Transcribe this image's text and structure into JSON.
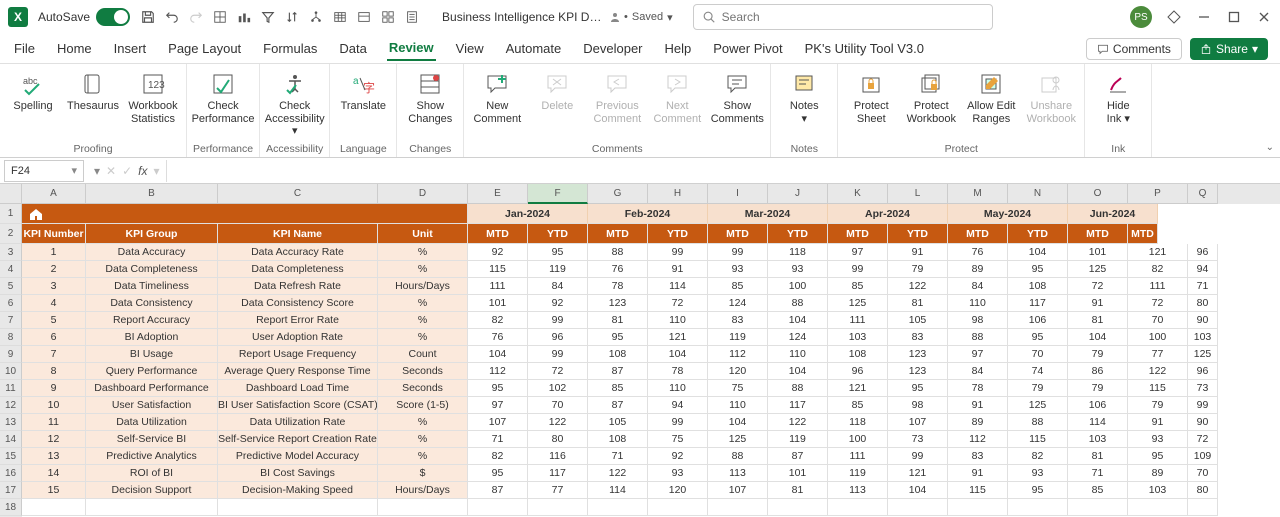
{
  "titlebar": {
    "autosave_label": "AutoSave",
    "autosave_state": "On",
    "doc_title": "Business Intelligence KPI Dashb...",
    "saved_label": "Saved",
    "search_placeholder": "Search",
    "avatar_initials": "PS"
  },
  "tabs": {
    "items": [
      "File",
      "Home",
      "Insert",
      "Page Layout",
      "Formulas",
      "Data",
      "Review",
      "View",
      "Automate",
      "Developer",
      "Help",
      "Power Pivot",
      "PK's Utility Tool V3.0"
    ],
    "active_index": 6,
    "comments_label": "Comments",
    "share_label": "Share"
  },
  "ribbon": {
    "groups": [
      {
        "label": "Proofing",
        "items": [
          {
            "label": "Spelling"
          },
          {
            "label": "Thesaurus"
          },
          {
            "label": "Workbook Statistics"
          }
        ]
      },
      {
        "label": "Performance",
        "items": [
          {
            "label": "Check Performance"
          }
        ]
      },
      {
        "label": "Accessibility",
        "items": [
          {
            "label": "Check Accessibility ▾"
          }
        ]
      },
      {
        "label": "Language",
        "items": [
          {
            "label": "Translate"
          }
        ]
      },
      {
        "label": "Changes",
        "items": [
          {
            "label": "Show Changes"
          }
        ]
      },
      {
        "label": "Comments",
        "items": [
          {
            "label": "New Comment"
          },
          {
            "label": "Delete",
            "disabled": true
          },
          {
            "label": "Previous Comment",
            "disabled": true
          },
          {
            "label": "Next Comment",
            "disabled": true
          },
          {
            "label": "Show Comments"
          }
        ]
      },
      {
        "label": "Notes",
        "items": [
          {
            "label": "Notes ▾"
          }
        ]
      },
      {
        "label": "Protect",
        "items": [
          {
            "label": "Protect Sheet"
          },
          {
            "label": "Protect Workbook"
          },
          {
            "label": "Allow Edit Ranges"
          },
          {
            "label": "Unshare Workbook",
            "disabled": true
          }
        ]
      },
      {
        "label": "Ink",
        "items": [
          {
            "label": "Hide Ink ▾"
          }
        ]
      }
    ]
  },
  "formula_bar": {
    "cell_ref": "F24",
    "formula": ""
  },
  "sheet": {
    "col_letters": [
      "A",
      "B",
      "C",
      "D",
      "E",
      "F",
      "G",
      "H",
      "I",
      "J",
      "K",
      "L",
      "M",
      "N",
      "O",
      "P",
      "Q"
    ],
    "selected_col": "F",
    "months": [
      "Jan-2024",
      "Feb-2024",
      "Mar-2024",
      "Apr-2024",
      "May-2024",
      "Jun-2024"
    ],
    "mtd_ytd": [
      "MTD",
      "YTD"
    ],
    "kpi_headers": [
      "KPI Number",
      "KPI Group",
      "KPI Name",
      "Unit"
    ],
    "rows": [
      {
        "n": "1",
        "g": "Data Accuracy",
        "name": "Data Accuracy Rate",
        "u": "%",
        "v": [
          "92",
          "95",
          "88",
          "99",
          "99",
          "118",
          "97",
          "91",
          "76",
          "104",
          "101",
          "121",
          "96"
        ]
      },
      {
        "n": "2",
        "g": "Data Completeness",
        "name": "Data Completeness",
        "u": "%",
        "v": [
          "115",
          "119",
          "76",
          "91",
          "93",
          "93",
          "99",
          "79",
          "89",
          "95",
          "125",
          "82",
          "94"
        ]
      },
      {
        "n": "3",
        "g": "Data Timeliness",
        "name": "Data Refresh Rate",
        "u": "Hours/Days",
        "v": [
          "111",
          "84",
          "78",
          "114",
          "85",
          "100",
          "85",
          "122",
          "84",
          "108",
          "72",
          "111",
          "71"
        ]
      },
      {
        "n": "4",
        "g": "Data Consistency",
        "name": "Data Consistency Score",
        "u": "%",
        "v": [
          "101",
          "92",
          "123",
          "72",
          "124",
          "88",
          "125",
          "81",
          "110",
          "117",
          "91",
          "72",
          "80"
        ]
      },
      {
        "n": "5",
        "g": "Report Accuracy",
        "name": "Report Error Rate",
        "u": "%",
        "v": [
          "82",
          "99",
          "81",
          "110",
          "83",
          "104",
          "111",
          "105",
          "98",
          "106",
          "81",
          "70",
          "90"
        ]
      },
      {
        "n": "6",
        "g": "BI Adoption",
        "name": "User Adoption Rate",
        "u": "%",
        "v": [
          "76",
          "96",
          "95",
          "121",
          "119",
          "124",
          "103",
          "83",
          "88",
          "95",
          "104",
          "100",
          "103"
        ]
      },
      {
        "n": "7",
        "g": "BI Usage",
        "name": "Report Usage Frequency",
        "u": "Count",
        "v": [
          "104",
          "99",
          "108",
          "104",
          "112",
          "110",
          "108",
          "123",
          "97",
          "70",
          "79",
          "77",
          "125"
        ]
      },
      {
        "n": "8",
        "g": "Query Performance",
        "name": "Average Query Response Time",
        "u": "Seconds",
        "v": [
          "112",
          "72",
          "87",
          "78",
          "120",
          "104",
          "96",
          "123",
          "84",
          "74",
          "86",
          "122",
          "96"
        ]
      },
      {
        "n": "9",
        "g": "Dashboard Performance",
        "name": "Dashboard Load Time",
        "u": "Seconds",
        "v": [
          "95",
          "102",
          "85",
          "110",
          "75",
          "88",
          "121",
          "95",
          "78",
          "79",
          "79",
          "115",
          "73"
        ]
      },
      {
        "n": "10",
        "g": "User Satisfaction",
        "name": "BI User Satisfaction Score (CSAT)",
        "u": "Score (1-5)",
        "v": [
          "97",
          "70",
          "87",
          "94",
          "110",
          "117",
          "85",
          "98",
          "91",
          "125",
          "106",
          "79",
          "99"
        ]
      },
      {
        "n": "11",
        "g": "Data Utilization",
        "name": "Data Utilization Rate",
        "u": "%",
        "v": [
          "107",
          "122",
          "105",
          "99",
          "104",
          "122",
          "118",
          "107",
          "89",
          "88",
          "114",
          "91",
          "90"
        ]
      },
      {
        "n": "12",
        "g": "Self-Service BI",
        "name": "Self-Service Report Creation Rate",
        "u": "%",
        "v": [
          "71",
          "80",
          "108",
          "75",
          "125",
          "119",
          "100",
          "73",
          "112",
          "115",
          "103",
          "93",
          "72"
        ]
      },
      {
        "n": "13",
        "g": "Predictive Analytics",
        "name": "Predictive Model Accuracy",
        "u": "%",
        "v": [
          "82",
          "116",
          "71",
          "92",
          "88",
          "87",
          "111",
          "99",
          "83",
          "82",
          "81",
          "95",
          "109"
        ]
      },
      {
        "n": "14",
        "g": "ROI of BI",
        "name": "BI Cost Savings",
        "u": "$",
        "v": [
          "95",
          "117",
          "122",
          "93",
          "113",
          "101",
          "119",
          "121",
          "91",
          "93",
          "71",
          "89",
          "70"
        ]
      },
      {
        "n": "15",
        "g": "Decision Support",
        "name": "Decision-Making Speed",
        "u": "Hours/Days",
        "v": [
          "87",
          "77",
          "114",
          "120",
          "107",
          "81",
          "113",
          "104",
          "115",
          "95",
          "85",
          "103",
          "80"
        ]
      }
    ]
  },
  "colors": {
    "accent": "#107c41",
    "header_orange": "#c65911",
    "month_bg": "#f7e0ce",
    "kpi_body_bg": "#fbe9dc"
  }
}
